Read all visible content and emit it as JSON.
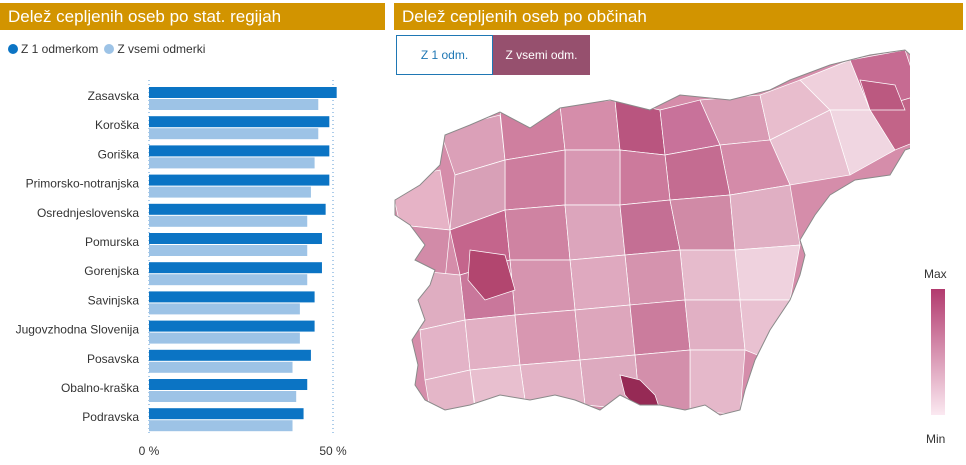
{
  "left_panel": {
    "title": "Delež cepljenih oseb po stat. regijah"
  },
  "right_panel": {
    "title": "Delež cepljenih oseb po občinah"
  },
  "legend": [
    {
      "label": "Z 1 odmerkom",
      "color": "#0b74c4"
    },
    {
      "label": "Z vsemi odmerki",
      "color": "#9dc3e6"
    }
  ],
  "toggles": {
    "one_dose": "Z 1 odm.",
    "all_doses": "Z vsemi odm.",
    "selected": "all_doses"
  },
  "color_scale": {
    "max_label": "Max",
    "min_label": "Min",
    "max_color": "#b23a6e",
    "min_color": "#fbe9f1"
  },
  "chart_data": {
    "type": "bar",
    "orientation": "horizontal",
    "categories": [
      "Zasavska",
      "Koroška",
      "Goriška",
      "Primorsko-notranjska",
      "Osrednjeslovenska",
      "Pomurska",
      "Gorenjska",
      "Savinjska",
      "Jugovzhodna Slovenija",
      "Posavska",
      "Obalno-kraška",
      "Podravska"
    ],
    "series": [
      {
        "name": "Z 1 odmerkom",
        "color": "#0b74c4",
        "values": [
          51,
          49,
          49,
          49,
          48,
          47,
          47,
          45,
          45,
          44,
          43,
          42
        ]
      },
      {
        "name": "Z vsemi odmerki",
        "color": "#9dc3e6",
        "values": [
          46,
          46,
          45,
          44,
          43,
          43,
          43,
          41,
          41,
          39,
          40,
          39
        ]
      }
    ],
    "x_ticks": [
      "0 %",
      "50 %"
    ],
    "xlim": [
      0,
      50
    ],
    "gridlines": [
      0,
      50
    ],
    "legend_position": "top-left"
  }
}
